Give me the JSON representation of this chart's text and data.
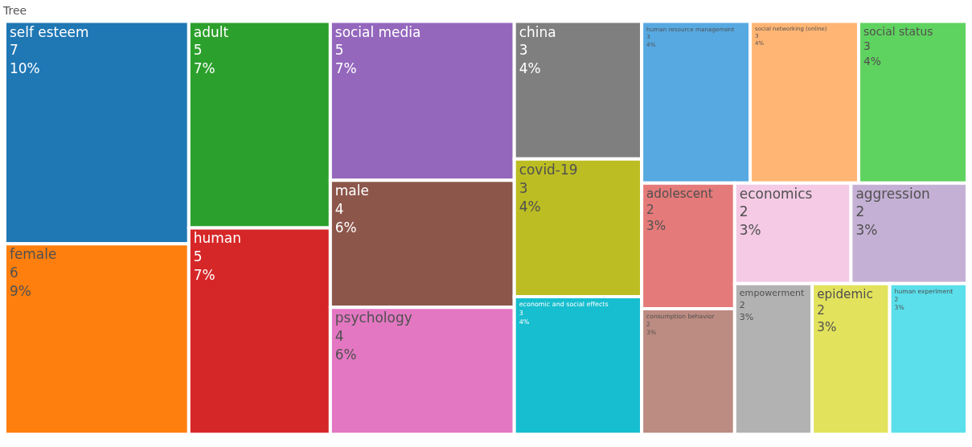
{
  "chart_data": {
    "type": "other",
    "title": "Tree",
    "categories": [
      "self esteem",
      "female",
      "adult",
      "human",
      "social media",
      "male",
      "psychology",
      "china",
      "covid-19",
      "economic and social effects",
      "human resource management",
      "social networking (online)",
      "social status",
      "adolescent",
      "consumption behavior",
      "economics",
      "aggression",
      "empowerment",
      "epidemic",
      "human experiment"
    ],
    "values": [
      7,
      6,
      5,
      5,
      5,
      4,
      4,
      3,
      3,
      3,
      3,
      3,
      3,
      2,
      2,
      2,
      2,
      2,
      2,
      2
    ],
    "value_labels": [
      "7\n10%",
      "6\n9%",
      "5\n7%",
      "5\n7%",
      "5\n7%",
      "4\n6%",
      "4\n6%",
      "3\n4%",
      "3\n4%",
      "3\n4%",
      "3\n4%",
      "3\n4%",
      "3\n4%",
      "2\n3%",
      "2\n3%",
      "2\n3%",
      "2\n3%",
      "2\n3%",
      "2\n3%",
      "2\n3%"
    ],
    "colors": [
      "#1f77b4",
      "#ff7f0e",
      "#2ca02c",
      "#d62728",
      "#9467bd",
      "#8c564b",
      "#e377c2",
      "#7f7f7f",
      "#bcbd22",
      "#17becf",
      "#57a9e2",
      "#ffb574",
      "#5fd35f",
      "#e47a79",
      "#bc8b81",
      "#f4cae4",
      "#c5b0d5",
      "#b2b2b2",
      "#e2e25c",
      "#5adfeb"
    ]
  }
}
